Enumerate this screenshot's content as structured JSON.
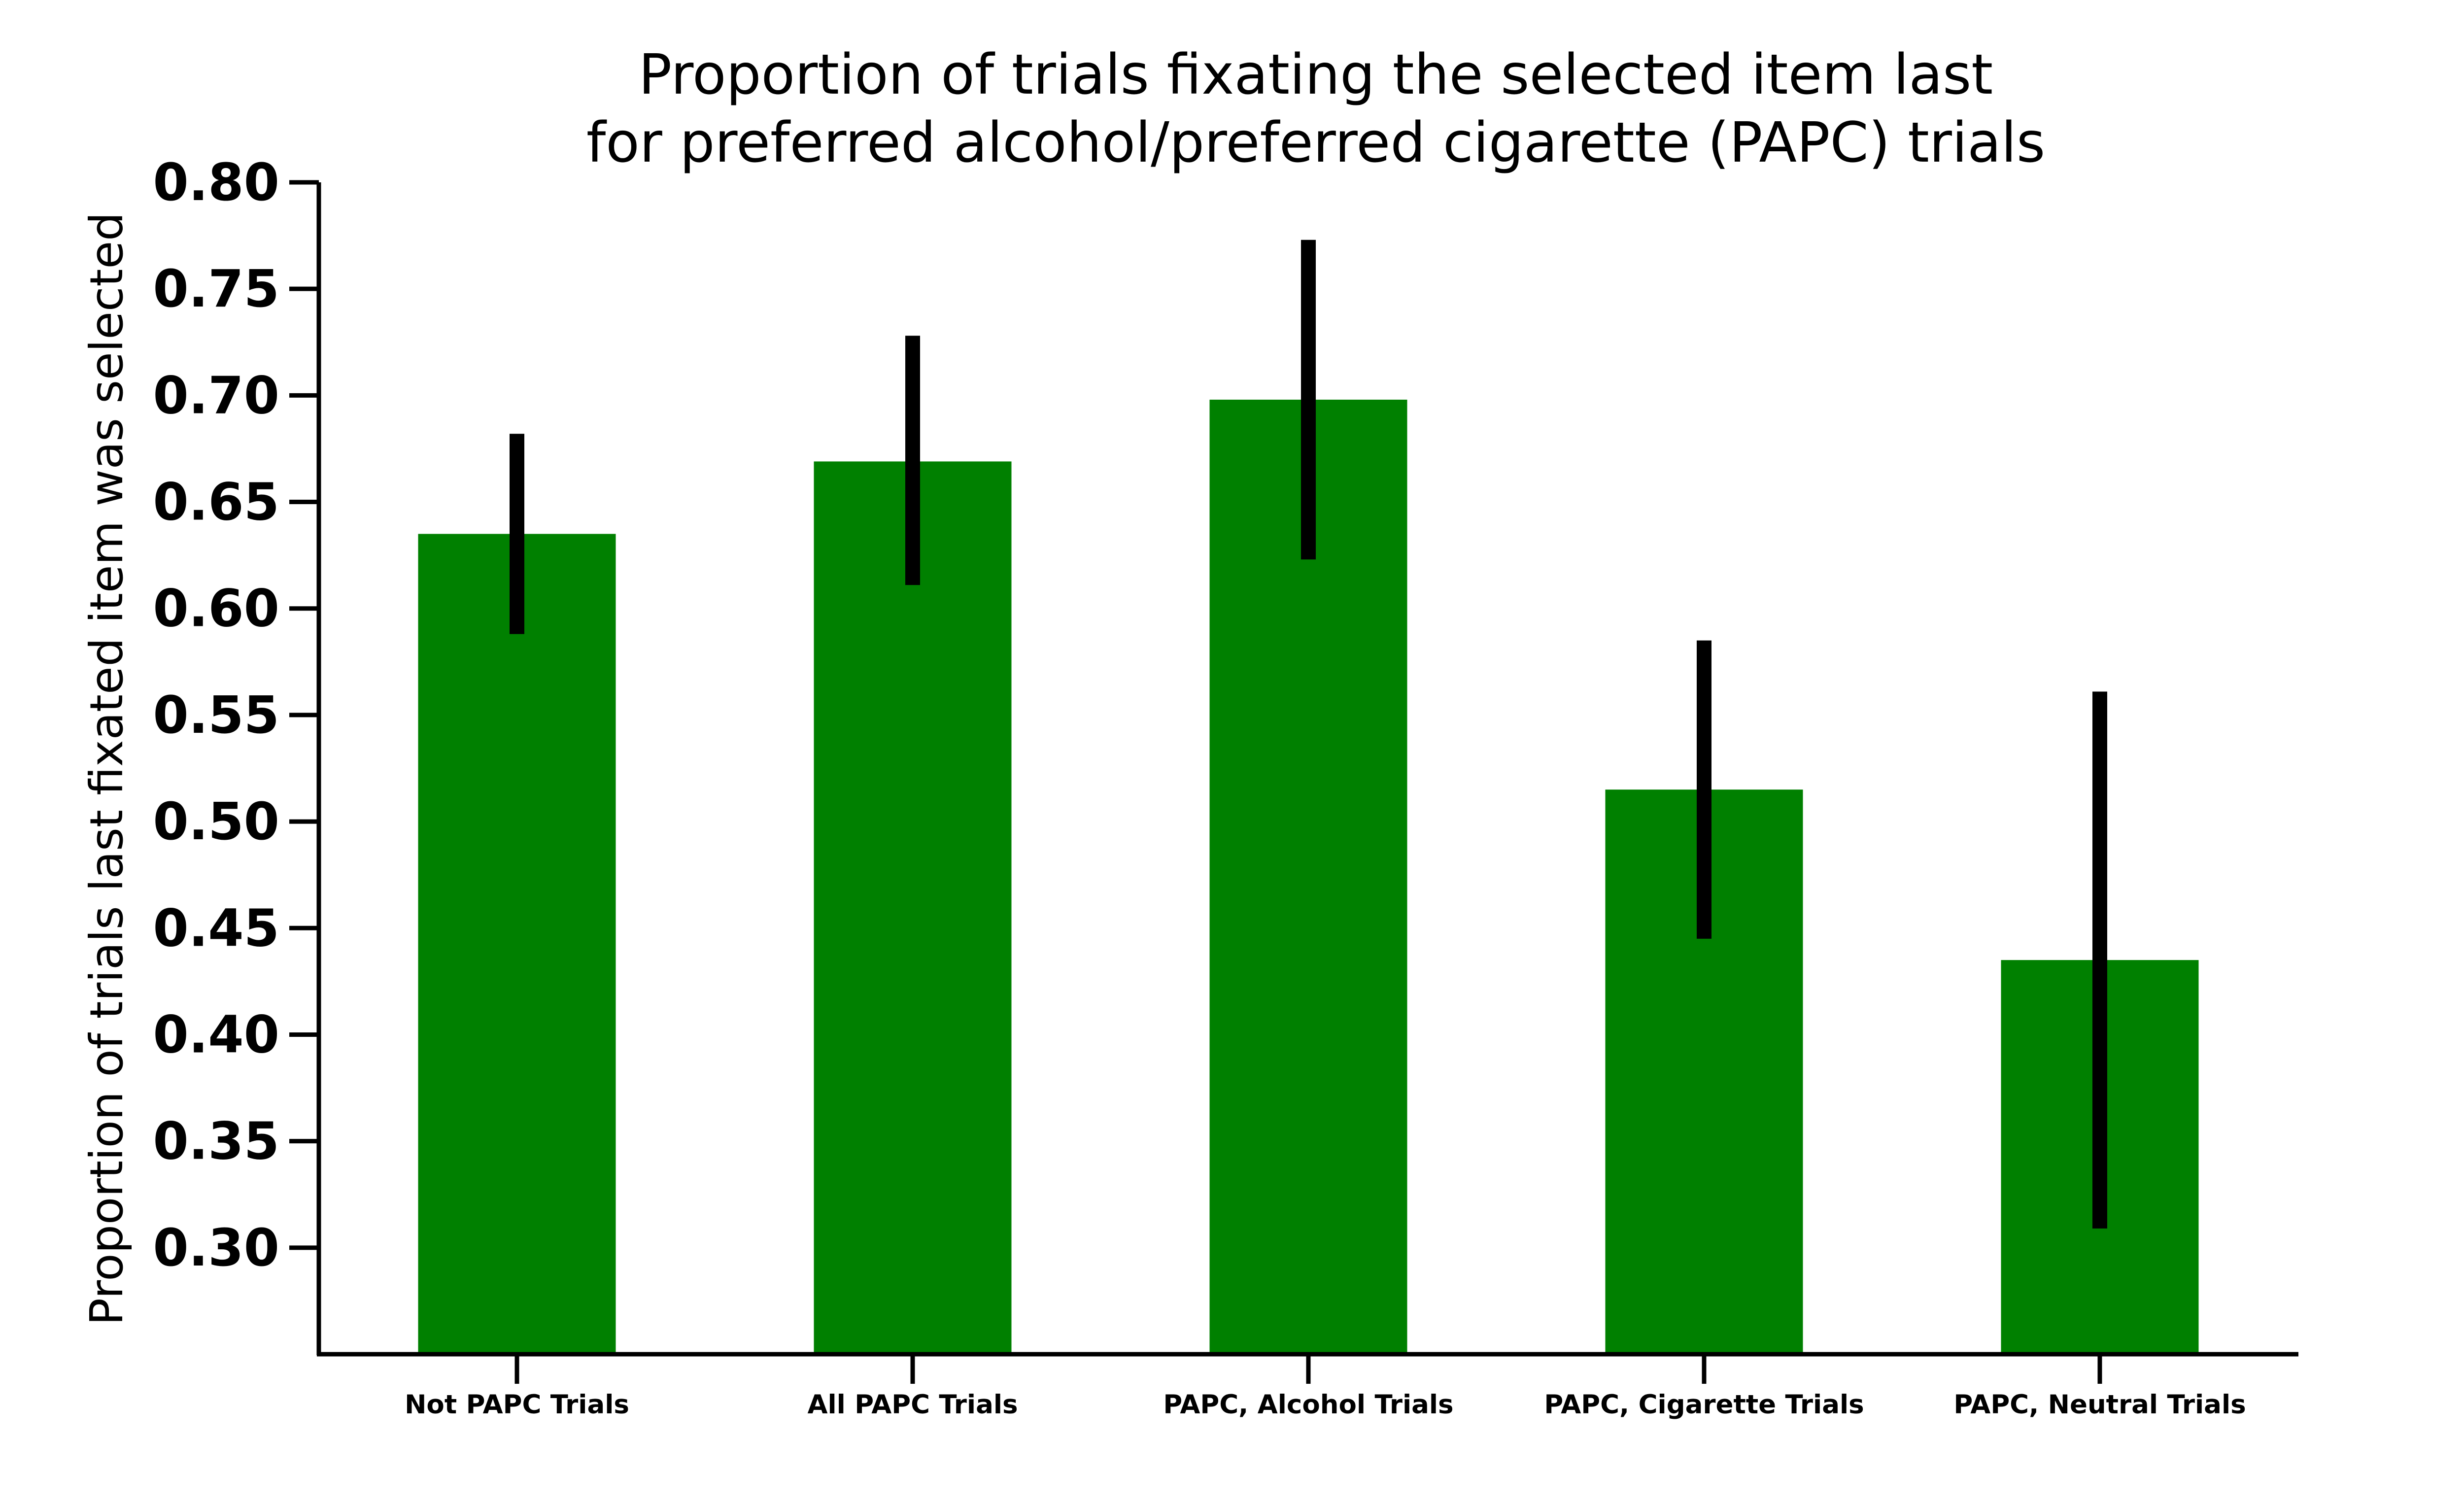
{
  "colors": {
    "bar": "#008000",
    "errorbar": "#000000",
    "axis": "#000000",
    "background": "#ffffff"
  },
  "chart_data": {
    "type": "bar",
    "title": [
      "Proportion of trials fixating the selected item last",
      "for preferred alcohol/preferred cigarette (PAPC) trials"
    ],
    "xlabel": "",
    "ylabel": "Proportion of trials last fixated item was selected",
    "categories": [
      "Not PAPC Trials",
      "All PAPC Trials",
      "PAPC, Alcohol Trials",
      "PAPC, Cigarette Trials",
      "PAPC, Neutral Trials"
    ],
    "values": [
      0.635,
      0.669,
      0.698,
      0.515,
      0.435
    ],
    "error_low": [
      0.588,
      0.611,
      0.623,
      0.445,
      0.309
    ],
    "error_high": [
      0.682,
      0.728,
      0.773,
      0.585,
      0.561
    ],
    "ylim": [
      0.25,
      0.8
    ],
    "yticks": [
      "0.30",
      "0.35",
      "0.40",
      "0.45",
      "0.50",
      "0.55",
      "0.60",
      "0.65",
      "0.70",
      "0.75",
      "0.80"
    ],
    "grid": false,
    "legend": "none"
  }
}
